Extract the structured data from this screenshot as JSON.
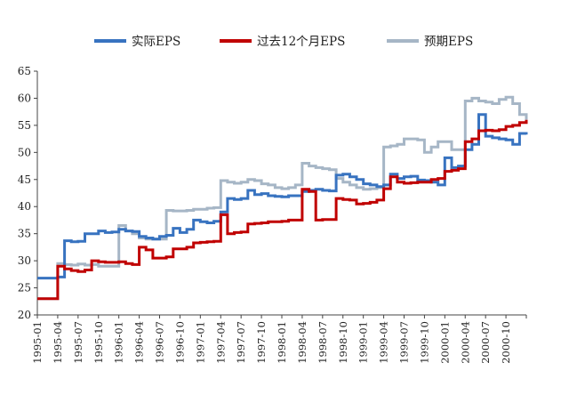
{
  "chart_data": {
    "type": "line",
    "title": "",
    "xlabel": "",
    "ylabel": "",
    "ylim": [
      20,
      65
    ],
    "yticks": [
      20,
      25,
      30,
      35,
      40,
      45,
      50,
      55,
      60,
      65
    ],
    "x_start": "1995-01",
    "x_end": "2001-01",
    "x_tick_labels": [
      "1995-01",
      "1995-04",
      "1995-07",
      "1995-10",
      "1996-01",
      "1996-04",
      "1996-07",
      "1996-10",
      "1997-01",
      "1997-04",
      "1997-07",
      "1997-10",
      "1998-01",
      "1998-04",
      "1998-07",
      "1998-10",
      "1999-01",
      "1999-04",
      "1999-07",
      "1999-10",
      "2000-01",
      "2000-04",
      "2000-07",
      "2000-10"
    ],
    "legend_position": "top",
    "grid": false,
    "series": [
      {
        "name": "实际EPS",
        "color": "#3873c0",
        "x": [
          "1995-01",
          "1995-04",
          "1995-05",
          "1995-06",
          "1995-07",
          "1995-08",
          "1995-09",
          "1995-10",
          "1995-11",
          "1995-12",
          "1996-01",
          "1996-02",
          "1996-03",
          "1996-04",
          "1996-05",
          "1996-06",
          "1996-07",
          "1996-08",
          "1996-09",
          "1996-10",
          "1996-11",
          "1996-12",
          "1997-01",
          "1997-02",
          "1997-03",
          "1997-04",
          "1997-05",
          "1997-06",
          "1997-07",
          "1997-08",
          "1997-09",
          "1997-10",
          "1997-11",
          "1997-12",
          "1998-01",
          "1998-02",
          "1998-03",
          "1998-04",
          "1998-05",
          "1998-06",
          "1998-07",
          "1998-08",
          "1998-09",
          "1998-10",
          "1998-11",
          "1998-12",
          "1999-01",
          "1999-02",
          "1999-03",
          "1999-04",
          "1999-05",
          "1999-06",
          "1999-07",
          "1999-08",
          "1999-09",
          "1999-10",
          "1999-11",
          "1999-12",
          "2000-01",
          "2000-02",
          "2000-03",
          "2000-04",
          "2000-05",
          "2000-06",
          "2000-07",
          "2000-08",
          "2000-09",
          "2000-10",
          "2000-11",
          "2000-12",
          "2001-01"
        ],
        "values": [
          26.8,
          27.0,
          33.7,
          33.5,
          33.6,
          35.0,
          35.0,
          35.5,
          35.2,
          35.3,
          35.8,
          35.5,
          35.4,
          34.5,
          34.2,
          34.0,
          34.5,
          34.7,
          36.0,
          35.2,
          35.8,
          37.5,
          37.2,
          37.0,
          37.3,
          39.0,
          41.5,
          41.3,
          41.5,
          43.0,
          42.2,
          42.4,
          42.0,
          41.9,
          41.8,
          42.0,
          42.0,
          42.8,
          43.0,
          43.2,
          43.0,
          42.9,
          45.8,
          46.0,
          45.5,
          45.0,
          44.2,
          44.0,
          43.7,
          44.0,
          46.0,
          45.2,
          45.5,
          45.6,
          44.9,
          44.8,
          44.5,
          44.0,
          49.0,
          47.2,
          47.5,
          50.5,
          51.5,
          57.0,
          53.0,
          52.7,
          52.5,
          52.3,
          51.5,
          53.5,
          53.3
        ]
      },
      {
        "name": "过去12个月EPS",
        "color": "#c00000",
        "x": [
          "1995-01",
          "1995-04",
          "1995-05",
          "1995-06",
          "1995-07",
          "1995-08",
          "1995-09",
          "1995-10",
          "1995-11",
          "1995-12",
          "1996-01",
          "1996-02",
          "1996-03",
          "1996-04",
          "1996-05",
          "1996-06",
          "1996-07",
          "1996-08",
          "1996-09",
          "1996-10",
          "1996-11",
          "1996-12",
          "1997-01",
          "1997-02",
          "1997-03",
          "1997-04",
          "1997-05",
          "1997-06",
          "1997-07",
          "1997-08",
          "1997-09",
          "1997-10",
          "1997-11",
          "1997-12",
          "1998-01",
          "1998-02",
          "1998-03",
          "1998-04",
          "1998-05",
          "1998-06",
          "1998-07",
          "1998-08",
          "1998-09",
          "1998-10",
          "1998-11",
          "1998-12",
          "1999-01",
          "1999-02",
          "1999-03",
          "1999-04",
          "1999-05",
          "1999-06",
          "1999-07",
          "1999-08",
          "1999-09",
          "1999-10",
          "1999-11",
          "1999-12",
          "2000-01",
          "2000-02",
          "2000-03",
          "2000-04",
          "2000-05",
          "2000-06",
          "2000-07",
          "2000-08",
          "2000-09",
          "2000-10",
          "2000-11",
          "2000-12",
          "2001-01"
        ],
        "values": [
          23.0,
          29.0,
          28.5,
          28.2,
          28.0,
          28.3,
          30.0,
          29.8,
          29.7,
          29.7,
          29.8,
          29.5,
          29.3,
          32.5,
          32.0,
          30.5,
          30.5,
          30.7,
          32.2,
          32.2,
          32.5,
          33.3,
          33.4,
          33.5,
          33.6,
          38.5,
          35.0,
          35.2,
          35.3,
          36.8,
          36.9,
          37.0,
          37.2,
          37.2,
          37.3,
          37.5,
          37.5,
          43.2,
          42.8,
          37.5,
          37.6,
          37.6,
          41.5,
          41.3,
          41.2,
          40.5,
          40.6,
          40.8,
          41.2,
          43.3,
          45.5,
          44.5,
          44.3,
          44.4,
          44.5,
          44.5,
          45.0,
          45.2,
          46.5,
          46.7,
          47.0,
          52.0,
          52.5,
          54.0,
          54.1,
          54.0,
          54.2,
          54.8,
          55.0,
          55.5,
          56.0
        ]
      },
      {
        "name": "预期EPS",
        "color": "#a6b6c6",
        "x": [
          "1995-01",
          "1995-04",
          "1995-05",
          "1995-06",
          "1995-07",
          "1995-08",
          "1995-09",
          "1995-10",
          "1995-11",
          "1995-12",
          "1996-01",
          "1996-02",
          "1996-03",
          "1996-04",
          "1996-05",
          "1996-06",
          "1996-07",
          "1996-08",
          "1996-09",
          "1996-10",
          "1996-11",
          "1996-12",
          "1997-01",
          "1997-02",
          "1997-03",
          "1997-04",
          "1997-05",
          "1997-06",
          "1997-07",
          "1997-08",
          "1997-09",
          "1997-10",
          "1997-11",
          "1997-12",
          "1998-01",
          "1998-02",
          "1998-03",
          "1998-04",
          "1998-05",
          "1998-06",
          "1998-07",
          "1998-08",
          "1998-09",
          "1998-10",
          "1998-11",
          "1998-12",
          "1999-01",
          "1999-02",
          "1999-03",
          "1999-04",
          "1999-05",
          "1999-06",
          "1999-07",
          "1999-08",
          "1999-09",
          "1999-10",
          "1999-11",
          "1999-12",
          "2000-01",
          "2000-02",
          "2000-03",
          "2000-04",
          "2000-05",
          "2000-06",
          "2000-07",
          "2000-08",
          "2000-09",
          "2000-10",
          "2000-11",
          "2000-12",
          "2001-01"
        ],
        "values": [
          23.0,
          29.5,
          29.3,
          29.2,
          29.4,
          29.2,
          29.3,
          29.0,
          29.0,
          29.0,
          36.5,
          35.5,
          35.0,
          34.2,
          34.0,
          34.0,
          34.0,
          39.3,
          39.2,
          39.2,
          39.3,
          39.5,
          39.5,
          39.7,
          39.8,
          44.8,
          44.5,
          44.3,
          44.5,
          45.0,
          44.8,
          44.2,
          44.0,
          43.5,
          43.3,
          43.5,
          44.0,
          48.0,
          47.5,
          47.2,
          47.0,
          46.8,
          45.2,
          44.5,
          44.0,
          43.5,
          43.2,
          43.3,
          43.5,
          51.0,
          51.2,
          51.5,
          52.5,
          52.5,
          52.3,
          50.0,
          51.0,
          52.0,
          52.0,
          50.5,
          50.5,
          59.5,
          60.0,
          59.5,
          59.3,
          59.0,
          59.8,
          60.2,
          59.0,
          57.0,
          56.0
        ]
      }
    ]
  }
}
